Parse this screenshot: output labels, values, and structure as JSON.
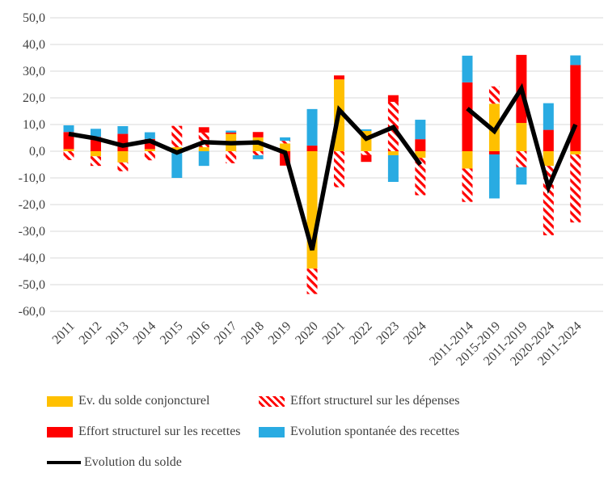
{
  "colors": {
    "conjoncturel": "#FFC000",
    "depenses_hatch": "#FF0000",
    "recettes": "#FF0000",
    "spontanee": "#29ABE2",
    "solde_line": "#000000",
    "gridline": "#D9D9D9",
    "axis_text": "#3F3F3F"
  },
  "legend": {
    "conjoncturel": "Ev. du solde conjoncturel",
    "depenses": "Effort structurel sur les dépenses",
    "recettes": "Effort structurel sur les recettes",
    "spontanee": "Evolution spontanée des recettes",
    "solde": "Evolution du solde"
  },
  "chart_data": {
    "type": "bar",
    "subtype": "stacked-bars-with-line-overlay",
    "title": "",
    "xlabel": "",
    "ylabel": "",
    "ylim": [
      -60,
      50
    ],
    "y_tick_step": 10,
    "y_tick_labels": [
      "50,0",
      "40,0",
      "30,0",
      "20,0",
      "10,0",
      "0,0",
      "-10,0",
      "-20,0",
      "-30,0",
      "-40,0",
      "-50,0",
      "-60,0"
    ],
    "grid": true,
    "legend_position": "bottom",
    "decimal_style": "french-comma",
    "categories": [
      "2011",
      "2012",
      "2013",
      "2014",
      "2015",
      "2016",
      "2017",
      "2018",
      "2019",
      "2020",
      "2021",
      "2022",
      "2023",
      "2024",
      "2011-2014",
      "2015-2019",
      "2011-2019",
      "2020-2024",
      "2011-2024"
    ],
    "gap_after_index": 13,
    "series": [
      {
        "name": "Ev. du solde conjoncturel",
        "type": "bar",
        "style": "solid",
        "color": "#FFC000",
        "values": [
          0.8,
          -1.9,
          -4.2,
          0.8,
          1.5,
          1.5,
          6.5,
          5.2,
          2.9,
          -44.0,
          26.9,
          7.6,
          -1.5,
          -2.5,
          -6.5,
          17.8,
          10.6,
          -5.5,
          -1.2
        ]
      },
      {
        "name": "Effort structurel sur les dépenses",
        "type": "bar",
        "style": "hatched",
        "color": "#FF0000",
        "values": [
          -3.3,
          -3.6,
          -3.3,
          -3.4,
          8.0,
          5.5,
          -4.5,
          -1.5,
          1.0,
          -9.5,
          -13.5,
          -1.4,
          18.5,
          -14.0,
          -12.5,
          6.5,
          -6.0,
          -26.0,
          -25.5
        ]
      },
      {
        "name": "Effort structurel sur les recettes",
        "type": "bar",
        "style": "solid",
        "color": "#FF0000",
        "values": [
          6.4,
          5.4,
          6.5,
          3.8,
          0,
          2.0,
          0.5,
          2.0,
          -5.4,
          2.1,
          1.5,
          -2.6,
          2.5,
          4.5,
          25.8,
          -1.2,
          25.5,
          8.0,
          32.3
        ]
      },
      {
        "name": "Evolution spontanée des recettes",
        "type": "bar",
        "style": "solid",
        "color": "#29ABE2",
        "values": [
          2.5,
          3.0,
          2.9,
          2.5,
          -10.0,
          -5.5,
          0.7,
          -1.5,
          1.3,
          13.7,
          0,
          0.6,
          -10.0,
          7.3,
          10.0,
          -16.5,
          -6.5,
          10.0,
          3.6
        ]
      },
      {
        "name": "Evolution du solde",
        "type": "line",
        "style": "solid-line",
        "color": "#000000",
        "values": [
          6.5,
          4.8,
          2.1,
          3.9,
          -0.5,
          3.4,
          3.0,
          3.3,
          -0.5,
          -37.0,
          15.5,
          4.7,
          9.0,
          -5.0,
          16.0,
          7.5,
          23.5,
          -13.5,
          10.0
        ]
      }
    ]
  }
}
